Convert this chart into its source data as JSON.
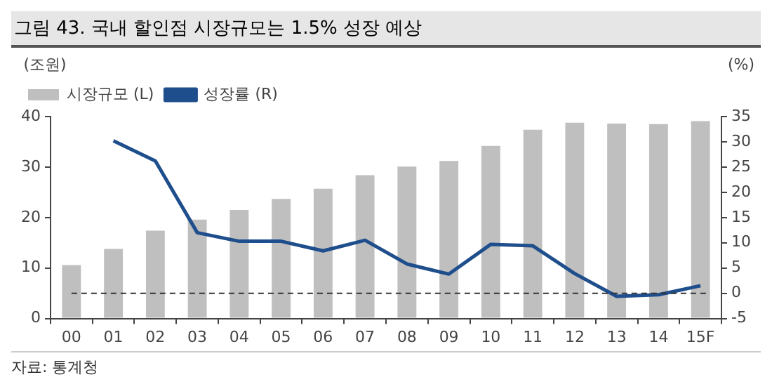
{
  "chart_data": {
    "type": "bar",
    "title": "그림 43. 국내 할인점 시장규모는 1.5% 성장 예상",
    "ylabel": "(조원)",
    "y2label": "(%)",
    "categories": [
      "00",
      "01",
      "02",
      "03",
      "04",
      "05",
      "06",
      "07",
      "08",
      "09",
      "10",
      "11",
      "12",
      "13",
      "14",
      "15F"
    ],
    "series": [
      {
        "name": "시장규모 (L)",
        "color": "#bfbfbf",
        "values": [
          10.6,
          13.8,
          17.4,
          19.6,
          21.5,
          23.7,
          25.7,
          28.4,
          30.1,
          31.2,
          34.2,
          37.4,
          38.8,
          38.6,
          38.5,
          39.1
        ]
      },
      {
        "name": "성장률 (R)",
        "type": "line",
        "axis": "y2",
        "color": "#1f4e8c",
        "values": [
          null,
          30.2,
          26.2,
          12.0,
          10.3,
          10.3,
          8.4,
          10.5,
          5.8,
          3.8,
          9.7,
          9.4,
          3.9,
          -0.6,
          -0.3,
          1.5
        ]
      }
    ],
    "ylim": [
      0,
      40
    ],
    "yticks": [
      0,
      10,
      20,
      30,
      40
    ],
    "y2lim": [
      -5,
      35
    ],
    "y2ticks": [
      -5,
      0,
      5,
      10,
      15,
      20,
      25,
      30,
      35
    ],
    "ref_lines": [
      {
        "axis": "y2",
        "value": 0,
        "color": "#333333",
        "line_style": "dashed"
      }
    ],
    "grid": false,
    "legend": "top left",
    "marker": "none",
    "annotations": [
      "자료: 통계청"
    ]
  }
}
